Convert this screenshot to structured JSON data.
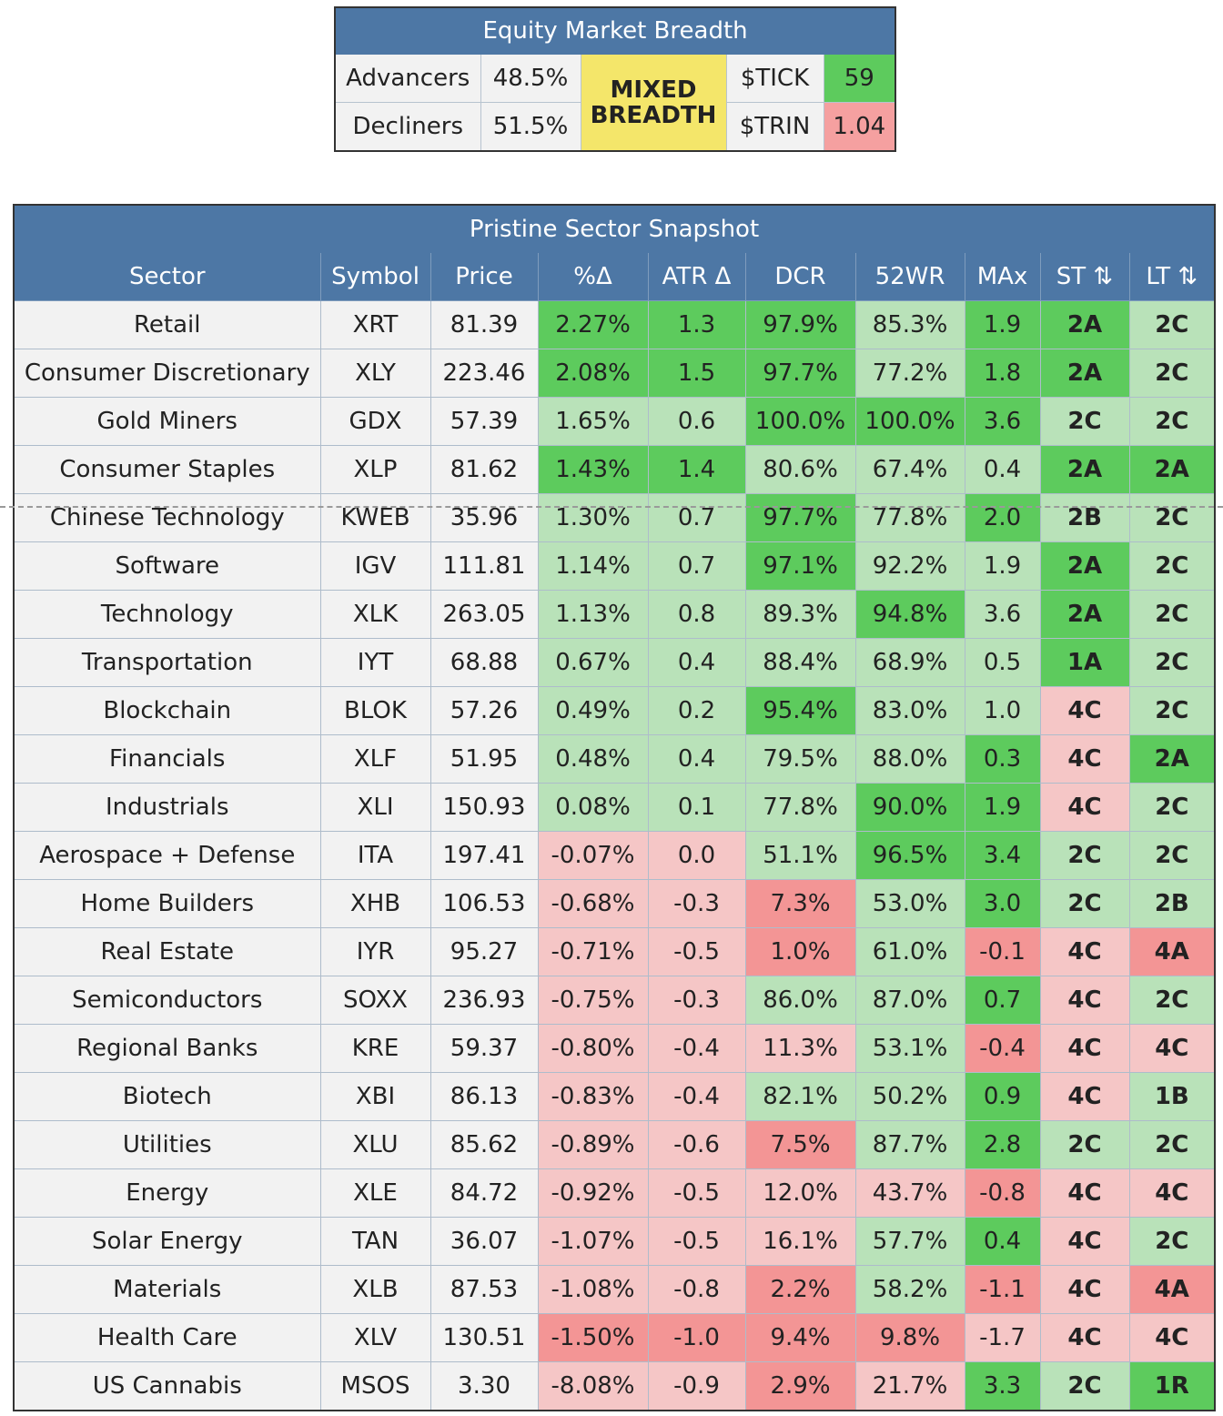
{
  "breadth": {
    "title": "Equity Market Breadth",
    "advancers_label": "Advancers",
    "advancers_value": "48.5%",
    "decliners_label": "Decliners",
    "decliners_value": "51.5%",
    "verdict": "MIXED BREADTH",
    "tick_label": "$TICK",
    "tick_value": "59",
    "trin_label": "$TRIN",
    "trin_value": "1.04"
  },
  "colors": {
    "header_blue": "#4d77a5",
    "strong_green": "#5dcb5d",
    "light_green": "#b9e2b9",
    "light_red": "#f5c6c6",
    "strong_red": "#f39595",
    "verdict_yellow": "#f4e66a",
    "neutral": "#f2f2f2"
  },
  "chart_data": {
    "type": "table",
    "title": "Pristine Sector Snapshot",
    "columns": [
      "Sector",
      "Symbol",
      "Price",
      "%Δ",
      "ATR Δ",
      "DCR",
      "52WR",
      "MAx",
      "ST ⇅",
      "LT ⇅"
    ],
    "rows": [
      [
        "Retail",
        "XRT",
        "81.39",
        "2.27%",
        "1.3",
        "97.9%",
        "85.3%",
        "1.9",
        "2A",
        "2C"
      ],
      [
        "Consumer Discretionary",
        "XLY",
        "223.46",
        "2.08%",
        "1.5",
        "97.7%",
        "77.2%",
        "1.8",
        "2A",
        "2C"
      ],
      [
        "Gold Miners",
        "GDX",
        "57.39",
        "1.65%",
        "0.6",
        "100.0%",
        "100.0%",
        "3.6",
        "2C",
        "2C"
      ],
      [
        "Consumer Staples",
        "XLP",
        "81.62",
        "1.43%",
        "1.4",
        "80.6%",
        "67.4%",
        "0.4",
        "2A",
        "2A"
      ],
      [
        "Chinese Technology",
        "KWEB",
        "35.96",
        "1.30%",
        "0.7",
        "97.7%",
        "77.8%",
        "2.0",
        "2B",
        "2C"
      ],
      [
        "Software",
        "IGV",
        "111.81",
        "1.14%",
        "0.7",
        "97.1%",
        "92.2%",
        "1.9",
        "2A",
        "2C"
      ],
      [
        "Technology",
        "XLK",
        "263.05",
        "1.13%",
        "0.8",
        "89.3%",
        "94.8%",
        "3.6",
        "2A",
        "2C"
      ],
      [
        "Transportation",
        "IYT",
        "68.88",
        "0.67%",
        "0.4",
        "88.4%",
        "68.9%",
        "0.5",
        "1A",
        "2C"
      ],
      [
        "Blockchain",
        "BLOK",
        "57.26",
        "0.49%",
        "0.2",
        "95.4%",
        "83.0%",
        "1.0",
        "4C",
        "2C"
      ],
      [
        "Financials",
        "XLF",
        "51.95",
        "0.48%",
        "0.4",
        "79.5%",
        "88.0%",
        "0.3",
        "4C",
        "2A"
      ],
      [
        "Industrials",
        "XLI",
        "150.93",
        "0.08%",
        "0.1",
        "77.8%",
        "90.0%",
        "1.9",
        "4C",
        "2C"
      ],
      [
        "Aerospace + Defense",
        "ITA",
        "197.41",
        "-0.07%",
        "0.0",
        "51.1%",
        "96.5%",
        "3.4",
        "2C",
        "2C"
      ],
      [
        "Home Builders",
        "XHB",
        "106.53",
        "-0.68%",
        "-0.3",
        "7.3%",
        "53.0%",
        "3.0",
        "2C",
        "2B"
      ],
      [
        "Real Estate",
        "IYR",
        "95.27",
        "-0.71%",
        "-0.5",
        "1.0%",
        "61.0%",
        "-0.1",
        "4C",
        "4A"
      ],
      [
        "Semiconductors",
        "SOXX",
        "236.93",
        "-0.75%",
        "-0.3",
        "86.0%",
        "87.0%",
        "0.7",
        "4C",
        "2C"
      ],
      [
        "Regional Banks",
        "KRE",
        "59.37",
        "-0.80%",
        "-0.4",
        "11.3%",
        "53.1%",
        "-0.4",
        "4C",
        "4C"
      ],
      [
        "Biotech",
        "XBI",
        "86.13",
        "-0.83%",
        "-0.4",
        "82.1%",
        "50.2%",
        "0.9",
        "4C",
        "1B"
      ],
      [
        "Utilities",
        "XLU",
        "85.62",
        "-0.89%",
        "-0.6",
        "7.5%",
        "87.7%",
        "2.8",
        "2C",
        "2C"
      ],
      [
        "Energy",
        "XLE",
        "84.72",
        "-0.92%",
        "-0.5",
        "12.0%",
        "43.7%",
        "-0.8",
        "4C",
        "4C"
      ],
      [
        "Solar Energy",
        "TAN",
        "36.07",
        "-1.07%",
        "-0.5",
        "16.1%",
        "57.7%",
        "0.4",
        "4C",
        "2C"
      ],
      [
        "Materials",
        "XLB",
        "87.53",
        "-1.08%",
        "-0.8",
        "2.2%",
        "58.2%",
        "-1.1",
        "4C",
        "4A"
      ],
      [
        "Health Care",
        "XLV",
        "130.51",
        "-1.50%",
        "-1.0",
        "9.4%",
        "9.8%",
        "-1.7",
        "4C",
        "4C"
      ],
      [
        "US Cannabis",
        "MSOS",
        "3.30",
        "-8.08%",
        "-0.9",
        "2.9%",
        "21.7%",
        "3.3",
        "2C",
        "1R"
      ]
    ],
    "shading": [
      [
        "sg",
        "sg",
        "sg",
        "lg",
        "sg",
        "sg",
        "lg"
      ],
      [
        "sg",
        "sg",
        "sg",
        "lg",
        "sg",
        "sg",
        "lg"
      ],
      [
        "lg",
        "lg",
        "sg",
        "sg",
        "sg",
        "lg",
        "lg"
      ],
      [
        "sg",
        "sg",
        "lg",
        "lg",
        "lg",
        "sg",
        "sg"
      ],
      [
        "lg",
        "lg",
        "sg",
        "lg",
        "sg",
        "lg",
        "lg"
      ],
      [
        "lg",
        "lg",
        "sg",
        "lg",
        "lg",
        "sg",
        "lg"
      ],
      [
        "lg",
        "lg",
        "lg",
        "sg",
        "lg",
        "sg",
        "lg"
      ],
      [
        "lg",
        "lg",
        "lg",
        "lg",
        "lg",
        "sg",
        "lg"
      ],
      [
        "lg",
        "lg",
        "sg",
        "lg",
        "lg",
        "lr",
        "lg"
      ],
      [
        "lg",
        "lg",
        "lg",
        "lg",
        "sg",
        "lr",
        "sg"
      ],
      [
        "lg",
        "lg",
        "lg",
        "sg",
        "sg",
        "lr",
        "lg"
      ],
      [
        "lr",
        "lr",
        "lg",
        "sg",
        "sg",
        "lg",
        "lg"
      ],
      [
        "lr",
        "lr",
        "sr",
        "lg",
        "sg",
        "lg",
        "lg"
      ],
      [
        "lr",
        "lr",
        "sr",
        "lg",
        "sr",
        "lr",
        "sr"
      ],
      [
        "lr",
        "lr",
        "lg",
        "lg",
        "sg",
        "lr",
        "lg"
      ],
      [
        "lr",
        "lr",
        "lr",
        "lg",
        "sr",
        "lr",
        "lr"
      ],
      [
        "lr",
        "lr",
        "lg",
        "lg",
        "sg",
        "lr",
        "lg"
      ],
      [
        "lr",
        "lr",
        "sr",
        "lg",
        "sg",
        "lg",
        "lg"
      ],
      [
        "lr",
        "lr",
        "lr",
        "lr",
        "sr",
        "lr",
        "lr"
      ],
      [
        "lr",
        "lr",
        "lr",
        "lg",
        "sg",
        "lr",
        "lg"
      ],
      [
        "lr",
        "lr",
        "sr",
        "lg",
        "sr",
        "lr",
        "sr"
      ],
      [
        "sr",
        "sr",
        "sr",
        "sr",
        "lr",
        "lr",
        "lr"
      ],
      [
        "lr",
        "lr",
        "sr",
        "lr",
        "sg",
        "lg",
        "sg"
      ]
    ]
  }
}
